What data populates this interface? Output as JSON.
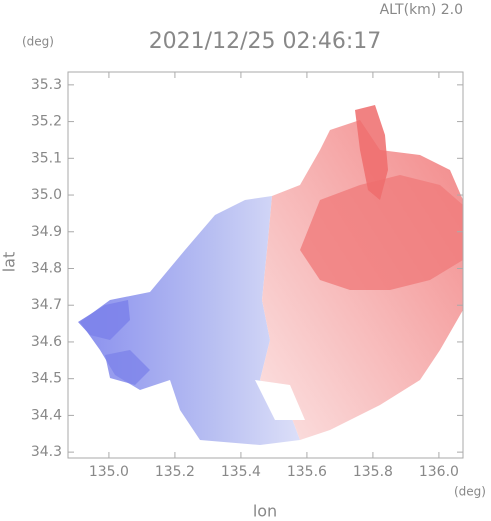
{
  "chart_data": {
    "type": "map",
    "title": "2021/12/25 02:46:17",
    "subtitle": "ALT(km) 2.0",
    "x_label": "lon",
    "y_label": "lat",
    "x_unit": "(deg)",
    "y_unit": "(deg)",
    "xlim": [
      134.876,
      136.073
    ],
    "ylim": [
      34.284,
      35.335
    ],
    "xticks": [
      {
        "value": 135,
        "label": "135.0"
      },
      135.2,
      135.4,
      135.6,
      135.8,
      {
        "value": 136,
        "label": "136.0"
      }
    ],
    "yticks": [
      34.3,
      34.4,
      34.5,
      34.6,
      34.7,
      34.8,
      34.9,
      {
        "value": 35,
        "label": "35.0"
      },
      35.1,
      35.2,
      35.3
    ]
  }
}
